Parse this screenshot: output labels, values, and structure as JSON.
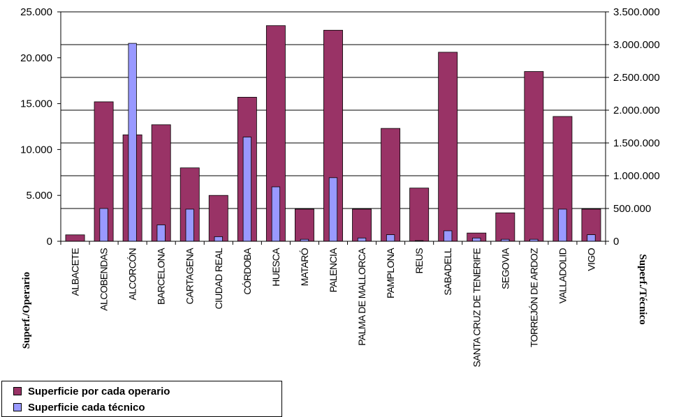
{
  "chart_data": {
    "type": "bar",
    "categories": [
      "ALBACETE",
      "ALCOBENDAS",
      "ALCORCÓN",
      "BARCELONA",
      "CARTAGENA",
      "CIUDAD REAL",
      "CÓRDOBA",
      "HUESCA",
      "MATARÓ",
      "PALENCIA",
      "PALMA DE MALLORCA",
      "PAMPLONA",
      "REUS",
      "SABADELL",
      "SANTA CRUZ DE TENERIFE",
      "SEGOVIA",
      "TORREJÓN DE ARDOZ",
      "VALLADOLID",
      "VIGO"
    ],
    "series": [
      {
        "name": "Superficie por cada operario",
        "axis": "left",
        "color": "#993366",
        "values": [
          700,
          15200,
          11600,
          12700,
          8000,
          5000,
          15700,
          23500,
          3500,
          23000,
          3500,
          12300,
          5800,
          20600,
          900,
          3100,
          18500,
          13600,
          3500
        ]
      },
      {
        "name": "Superficie cada técnico",
        "axis": "right",
        "color": "#9999FF",
        "values": [
          0,
          500000,
          3020000,
          250000,
          490000,
          70000,
          1590000,
          830000,
          30000,
          970000,
          50000,
          100000,
          10000,
          160000,
          50000,
          30000,
          30000,
          490000,
          100000
        ]
      }
    ],
    "ylabel": "Superf./Operario",
    "y2label": "Superf./Técnico",
    "ylim": [
      0,
      25000
    ],
    "y2lim": [
      0,
      3500000
    ],
    "yticks": [
      "0",
      "5.000",
      "10.000",
      "15.000",
      "20.000",
      "25.000"
    ],
    "y2ticks": [
      "0",
      "500.000",
      "1.000.000",
      "1.500.000",
      "2.000.000",
      "2.500.000",
      "3.000.000",
      "3.500.000"
    ],
    "grid": true,
    "legend_position": "bottom-left"
  }
}
